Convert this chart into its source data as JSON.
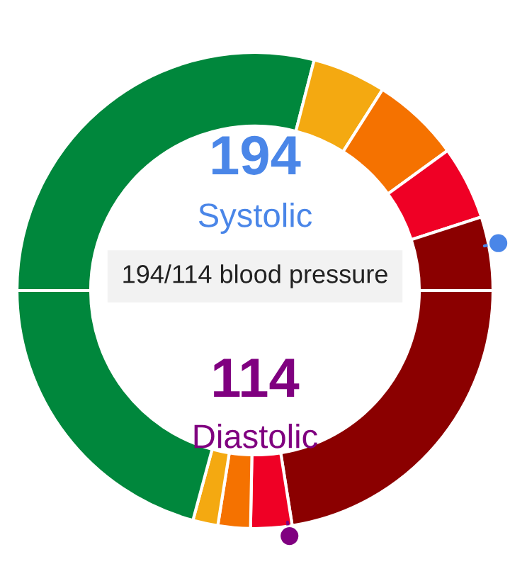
{
  "chart_data": {
    "type": "donut",
    "categories": [
      null,
      null,
      null,
      null,
      null,
      null,
      null,
      null,
      null,
      null
    ],
    "values": [
      29,
      5,
      6,
      5,
      5,
      22.5,
      2.8,
      2.2,
      1.7,
      20.8
    ],
    "colors": [
      "#00873c",
      "#f4a911",
      "#f57200",
      "#ef0025",
      "#8b0000",
      "#8b0000",
      "#ef0025",
      "#f57200",
      "#f4a911",
      "#00873c"
    ],
    "annotations": [
      "194",
      "Systolic",
      "194/114 blood pressure",
      "114",
      "Diastolic"
    ]
  }
}
